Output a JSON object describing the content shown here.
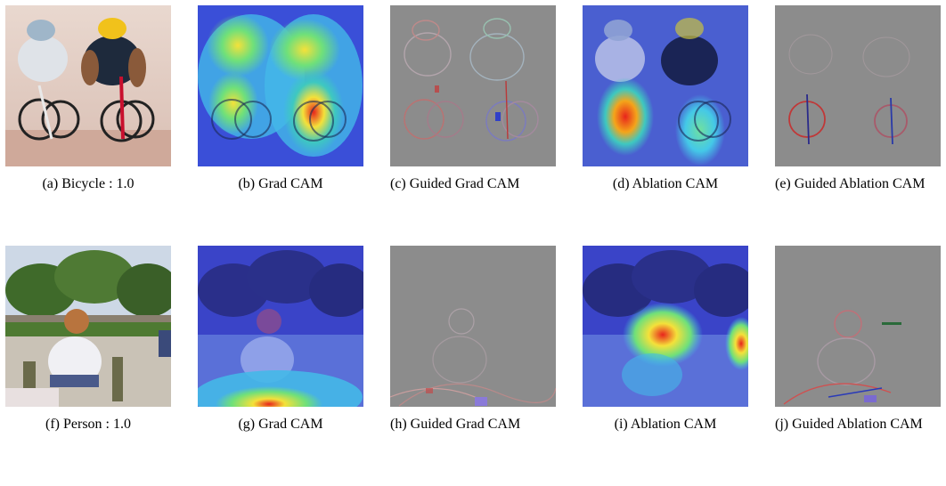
{
  "rows": [
    {
      "captions": [
        "(a) Bicycle : 1.0",
        "(b) Grad CAM",
        "(c) Guided Grad CAM",
        "(d) Ablation CAM",
        "(e) Guided Ablation CAM"
      ]
    },
    {
      "captions": [
        "(f) Person : 1.0",
        "(g) Grad CAM",
        "(h) Guided Grad CAM",
        "(i) Ablation CAM",
        "(j) Guided Ablation CAM"
      ]
    }
  ],
  "colors": {
    "guided_gray": "#8c8c8c",
    "heat_blue": "#3a4fd8",
    "heat_red": "#e8241c",
    "heat_yellow": "#f4e13a"
  }
}
